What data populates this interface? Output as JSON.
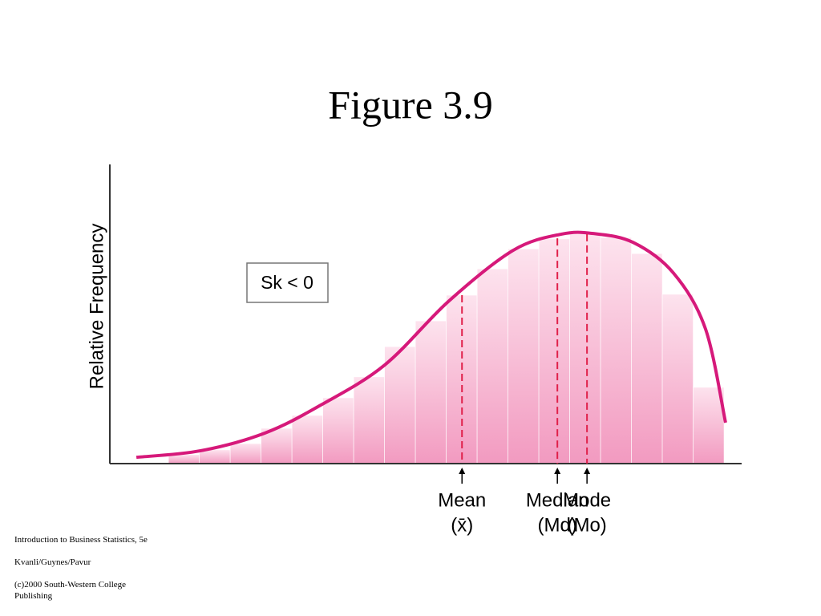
{
  "chart_data": {
    "type": "histogram",
    "title": "Figure 3.9",
    "y_label": "Relative Frequency",
    "box_label": "Sk < 0",
    "bins": [
      0,
      1,
      2,
      3,
      4,
      5,
      6,
      7,
      8,
      9,
      10,
      11,
      12,
      13,
      14,
      15,
      16,
      17,
      18
    ],
    "counts": [
      3,
      4.6,
      6.7,
      11.8,
      16.1,
      22,
      29,
      39.1,
      47.7,
      56.3,
      65.1,
      71.8,
      75.1,
      76.7,
      75.6,
      70.2,
      56.6,
      25.5
    ],
    "color": "#f29ac0",
    "curve": {
      "x": [
        -1.04,
        1.04,
        3.12,
        4.94,
        7.01,
        9.09,
        11.17,
        12.73,
        13.77,
        15.06,
        16.36,
        17.4,
        18.05
      ],
      "y": [
        2.1,
        4.3,
        10.2,
        19.6,
        33,
        54.4,
        71.3,
        76.7,
        76.9,
        73.9,
        63.7,
        45,
        13.7
      ],
      "color": "#d6197a"
    },
    "markers": [
      {
        "label": "Mean",
        "symbol": "(x̄)",
        "x": 9.51,
        "y": 56.3
      },
      {
        "label": "Median",
        "symbol": "(Md)",
        "x": 12.6,
        "y": 75.3
      },
      {
        "label": "Mode",
        "symbol": "(Mo)",
        "x": 13.56,
        "y": 76.7
      }
    ],
    "marker_color": "#e0204a",
    "xlim": [
      -1.9,
      18.57
    ],
    "ylim": [
      0,
      100
    ]
  },
  "footer": {
    "lines": [
      "Introduction to Business Statistics, 5e",
      "Kvanli/Guynes/Pavur",
      "(c)2000 South-Western College Publishing"
    ]
  }
}
